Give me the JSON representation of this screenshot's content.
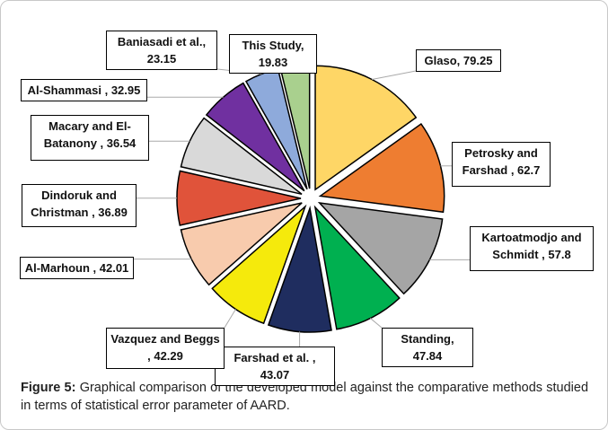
{
  "chart_data": {
    "type": "pie",
    "value_labels": [
      "Glaso, 79.25",
      "Petrosky and Farshad , 62.7",
      "Kartoatmodjo and Schmidt , 57.8",
      "Standing, 47.84",
      "Farshad et al. , 43.07",
      "Vazquez and Beggs , 42.29",
      "Al-Marhoun , 42.01",
      "Dindoruk and Christman , 36.89",
      "Macary and El-Batanony , 36.54",
      "Al-Shammasi , 32.95",
      "Baniasadi et al., 23.15",
      "This Study, 19.83"
    ],
    "values": [
      79.25,
      62.7,
      57.8,
      47.84,
      43.07,
      42.29,
      42.01,
      36.89,
      36.54,
      32.95,
      23.15,
      19.83
    ],
    "colors": [
      "#fed666",
      "#ee7d31",
      "#a5a5a5",
      "#00b050",
      "#1f2d5f",
      "#f5ea0c",
      "#f8cbad",
      "#e0533a",
      "#d9d9d9",
      "#7030a0",
      "#8eaadb",
      "#a9d08e"
    ]
  },
  "caption_label": "Figure 5:",
  "caption": "Graphical comparison of the developed model against the comparative methods studied in terms of statistical error parameter of AARD."
}
